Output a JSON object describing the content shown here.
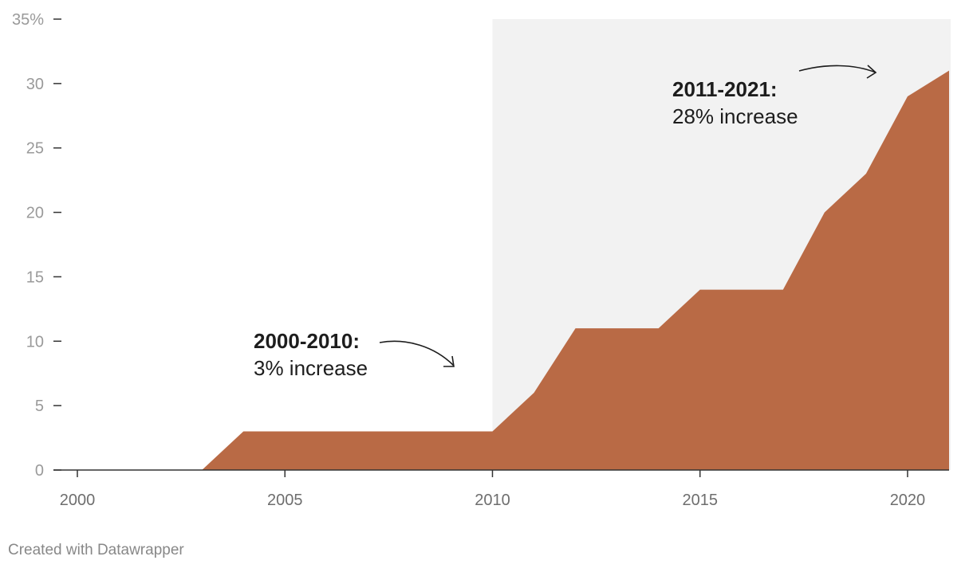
{
  "chart_data": {
    "type": "area",
    "x": [
      2000,
      2001,
      2002,
      2003,
      2004,
      2005,
      2006,
      2007,
      2008,
      2009,
      2010,
      2011,
      2012,
      2013,
      2014,
      2015,
      2016,
      2017,
      2018,
      2019,
      2020,
      2021
    ],
    "values": [
      0,
      0,
      0,
      0,
      3,
      3,
      3,
      3,
      3,
      3,
      3,
      6,
      11,
      11,
      11,
      14,
      14,
      14,
      20,
      23,
      29,
      31
    ],
    "y_ticks": [
      "0",
      "5",
      "10",
      "15",
      "20",
      "25",
      "30",
      "35%"
    ],
    "y_tick_values": [
      0,
      5,
      10,
      15,
      20,
      25,
      30,
      35
    ],
    "x_ticks": [
      "2000",
      "2005",
      "2010",
      "2015",
      "2020"
    ],
    "x_tick_values": [
      2000,
      2005,
      2010,
      2015,
      2020
    ],
    "xlim": [
      2000,
      2021
    ],
    "ylim": [
      0,
      35
    ],
    "highlight_range": [
      2010,
      2021
    ],
    "grid": false,
    "colors": {
      "area": "#b96a45",
      "highlight": "#f2f2f2",
      "axis": "#333333",
      "tick": "#9a9a9a"
    },
    "annotations": [
      {
        "title": "2000-2010:",
        "text": "3% increase"
      },
      {
        "title": "2011-2021:",
        "text": "28% increase"
      }
    ]
  },
  "footer": {
    "credit": "Created with Datawrapper"
  }
}
